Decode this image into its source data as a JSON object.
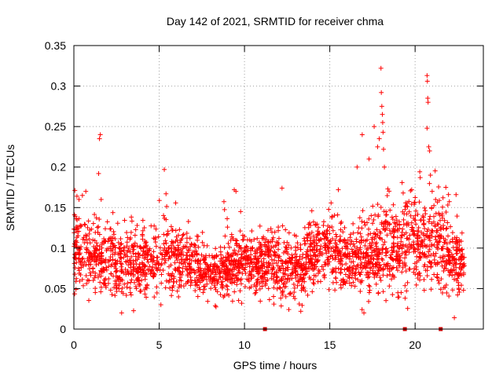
{
  "chart_data": {
    "type": "scatter",
    "title": "Day 142 of 2021, SRMTID for receiver chma",
    "xlabel": "GPS time / hours",
    "ylabel": "SRMTID / TECUs",
    "xlim": [
      0,
      24
    ],
    "ylim": [
      0,
      0.35
    ],
    "x_ticks": [
      0,
      5,
      10,
      15,
      20
    ],
    "x_tick_labels": [
      "0",
      "5",
      "10",
      "15",
      "20"
    ],
    "y_ticks": [
      0,
      0.05,
      0.1,
      0.15,
      0.2,
      0.25,
      0.3,
      0.35
    ],
    "y_tick_labels": [
      "0",
      "0.05",
      "0.1",
      "0.15",
      "0.2",
      "0.25",
      "0.3",
      "0.35"
    ],
    "grid": true,
    "marker": "plus",
    "color": "#ff0000",
    "series": [
      {
        "name": "SRMTID",
        "x_range": [
          0.0,
          22.9
        ],
        "envelope_hours": [
          0,
          1,
          2,
          3,
          4,
          5,
          6,
          7,
          8,
          9,
          10,
          11,
          12,
          13,
          14,
          15,
          16,
          17,
          18,
          19,
          20,
          21,
          22,
          22.9
        ],
        "median": [
          0.1,
          0.09,
          0.085,
          0.08,
          0.08,
          0.085,
          0.09,
          0.08,
          0.065,
          0.075,
          0.08,
          0.08,
          0.075,
          0.07,
          0.09,
          0.1,
          0.085,
          0.085,
          0.1,
          0.1,
          0.105,
          0.11,
          0.095,
          0.075
        ],
        "spread": [
          0.035,
          0.03,
          0.03,
          0.03,
          0.03,
          0.03,
          0.03,
          0.025,
          0.02,
          0.025,
          0.025,
          0.025,
          0.03,
          0.025,
          0.03,
          0.03,
          0.03,
          0.035,
          0.04,
          0.04,
          0.04,
          0.04,
          0.035,
          0.02
        ],
        "highlights": [
          {
            "x": 0.3,
            "y": 0.16
          },
          {
            "x": 0.5,
            "y": 0.165
          },
          {
            "x": 0.7,
            "y": 0.17
          },
          {
            "x": 1.45,
            "y": 0.192
          },
          {
            "x": 1.5,
            "y": 0.235
          },
          {
            "x": 1.55,
            "y": 0.24
          },
          {
            "x": 1.6,
            "y": 0.16
          },
          {
            "x": 5.3,
            "y": 0.197
          },
          {
            "x": 5.4,
            "y": 0.167
          },
          {
            "x": 9.4,
            "y": 0.172
          },
          {
            "x": 9.5,
            "y": 0.17
          },
          {
            "x": 12.2,
            "y": 0.174
          },
          {
            "x": 15.5,
            "y": 0.172
          },
          {
            "x": 16.6,
            "y": 0.2
          },
          {
            "x": 16.9,
            "y": 0.24
          },
          {
            "x": 17.3,
            "y": 0.21
          },
          {
            "x": 17.6,
            "y": 0.25
          },
          {
            "x": 17.8,
            "y": 0.225
          },
          {
            "x": 17.9,
            "y": 0.235
          },
          {
            "x": 18.0,
            "y": 0.322
          },
          {
            "x": 18.02,
            "y": 0.292
          },
          {
            "x": 18.05,
            "y": 0.275
          },
          {
            "x": 18.08,
            "y": 0.265
          },
          {
            "x": 18.1,
            "y": 0.255
          },
          {
            "x": 18.12,
            "y": 0.243
          },
          {
            "x": 18.15,
            "y": 0.222
          },
          {
            "x": 18.2,
            "y": 0.2
          },
          {
            "x": 18.4,
            "y": 0.173
          },
          {
            "x": 19.3,
            "y": 0.168
          },
          {
            "x": 19.8,
            "y": 0.172
          },
          {
            "x": 20.3,
            "y": 0.187
          },
          {
            "x": 20.7,
            "y": 0.313
          },
          {
            "x": 20.72,
            "y": 0.306
          },
          {
            "x": 20.74,
            "y": 0.285
          },
          {
            "x": 20.76,
            "y": 0.28
          },
          {
            "x": 20.7,
            "y": 0.248
          },
          {
            "x": 20.8,
            "y": 0.225
          },
          {
            "x": 20.85,
            "y": 0.22
          },
          {
            "x": 20.9,
            "y": 0.19
          },
          {
            "x": 21.0,
            "y": 0.17
          },
          {
            "x": 21.2,
            "y": 0.16
          },
          {
            "x": 21.8,
            "y": 0.175
          },
          {
            "x": 22.4,
            "y": 0.166
          },
          {
            "x": 22.3,
            "y": 0.014
          },
          {
            "x": 17.0,
            "y": 0.02
          },
          {
            "x": 5.1,
            "y": 0.03
          },
          {
            "x": 2.8,
            "y": 0.02
          },
          {
            "x": 13.3,
            "y": 0.022
          }
        ],
        "zero_markers_x": [
          11.2,
          19.4,
          21.5
        ]
      }
    ]
  }
}
